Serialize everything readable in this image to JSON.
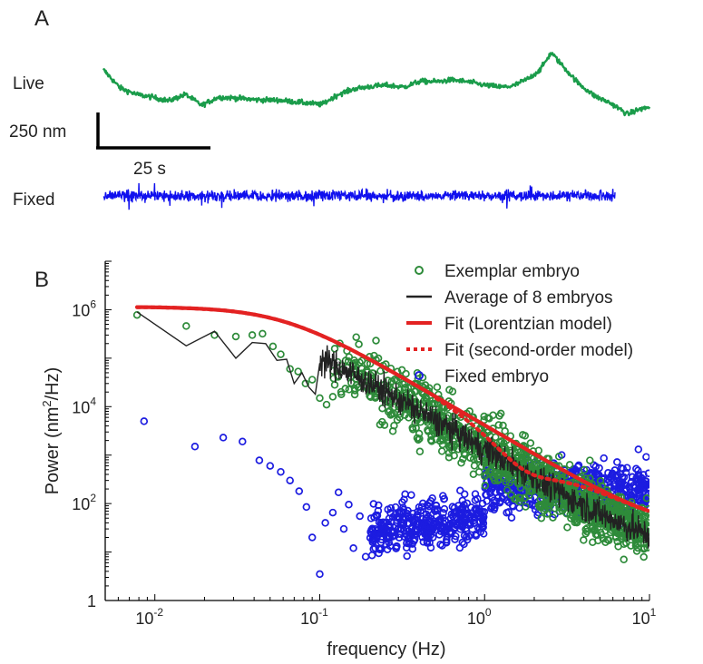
{
  "chart_data": [
    {
      "panel": "A",
      "type": "line",
      "scale_bar": {
        "y_label": "250 nm",
        "x_label": "25 s"
      },
      "series": [
        {
          "name": "Live",
          "color": "#1a9c4a",
          "profile": [
            [
              0.0,
              0.78
            ],
            [
              0.03,
              0.28
            ],
            [
              0.06,
              0.1
            ],
            [
              0.09,
              0.02
            ],
            [
              0.12,
              -0.08
            ],
            [
              0.15,
              0.1
            ],
            [
              0.18,
              -0.2
            ],
            [
              0.21,
              0.02
            ],
            [
              0.24,
              0.0
            ],
            [
              0.28,
              -0.05
            ],
            [
              0.32,
              -0.06
            ],
            [
              0.36,
              -0.12
            ],
            [
              0.4,
              -0.18
            ],
            [
              0.43,
              0.1
            ],
            [
              0.46,
              0.25
            ],
            [
              0.49,
              0.32
            ],
            [
              0.52,
              0.35
            ],
            [
              0.55,
              0.3
            ],
            [
              0.58,
              0.46
            ],
            [
              0.61,
              0.45
            ],
            [
              0.64,
              0.5
            ],
            [
              0.67,
              0.44
            ],
            [
              0.7,
              0.35
            ],
            [
              0.73,
              0.3
            ],
            [
              0.75,
              0.33
            ],
            [
              0.78,
              0.55
            ],
            [
              0.8,
              0.78
            ],
            [
              0.82,
              1.25
            ],
            [
              0.84,
              0.9
            ],
            [
              0.87,
              0.4
            ],
            [
              0.9,
              0.05
            ],
            [
              0.93,
              -0.15
            ],
            [
              0.96,
              -0.45
            ],
            [
              0.98,
              -0.32
            ],
            [
              1.0,
              -0.25
            ]
          ]
        },
        {
          "name": "Fixed",
          "color": "#1010ee"
        }
      ]
    },
    {
      "panel": "B",
      "type": "scatter",
      "xlabel": "frequency (Hz)",
      "ylabel": "Power (nm",
      "ylabel_sup": "2",
      "ylabel_end": "/Hz)",
      "x_scale": "log",
      "y_scale": "log",
      "xlim": [
        0.005,
        10
      ],
      "ylim": [
        1,
        10000000
      ],
      "x_ticks": [
        {
          "value": 0.01,
          "base": "10",
          "exp": "-2"
        },
        {
          "value": 0.1,
          "base": "10",
          "exp": "-1"
        },
        {
          "value": 1,
          "base": "10",
          "exp": "0"
        },
        {
          "value": 10,
          "base": "10",
          "exp": "1"
        }
      ],
      "y_ticks": [
        {
          "value": 1,
          "base": "1",
          "exp": ""
        },
        {
          "value": 100,
          "base": "10",
          "exp": "2"
        },
        {
          "value": 10000,
          "base": "10",
          "exp": "4"
        },
        {
          "value": 1000000,
          "base": "10",
          "exp": "6"
        }
      ],
      "legend_position": "top-right",
      "series": [
        {
          "name": "Exemplar embryo",
          "kind": "scatter",
          "color": "#2e8b3a"
        },
        {
          "name": "Average of 8 embryos",
          "kind": "line",
          "color": "#222222"
        },
        {
          "name": "Fit (Lorentzian model)",
          "kind": "line",
          "color": "#e32222",
          "model": {
            "A": 1150000,
            "fc": 0.06,
            "floor": 28
          }
        },
        {
          "name": "Fit (second-order model)",
          "kind": "dotted",
          "color": "#e32222",
          "model": {
            "A": 1150000,
            "fc": 0.06,
            "floor": 28
          }
        },
        {
          "name": "Fixed embryo",
          "kind": "scatter",
          "color": "#1c1ce0",
          "low_freq_points": [
            [
              0.0086,
              5000
            ],
            [
              0.0175,
              1500
            ],
            [
              0.026,
              2300
            ],
            [
              0.034,
              1900
            ],
            [
              0.043,
              780
            ],
            [
              0.05,
              600
            ],
            [
              0.058,
              450
            ],
            [
              0.066,
              300
            ],
            [
              0.075,
              180
            ],
            [
              0.083,
              85
            ],
            [
              0.09,
              20
            ],
            [
              0.1,
              3.5
            ],
            [
              0.108,
              40
            ],
            [
              0.12,
              65
            ],
            [
              0.13,
              170
            ],
            [
              0.14,
              30
            ],
            [
              0.15,
              95
            ],
            [
              0.16,
              12
            ],
            [
              0.175,
              55
            ],
            [
              0.19,
              8
            ]
          ]
        }
      ],
      "exemplar_low_freq_points": [
        [
          0.0078,
          780000
        ],
        [
          0.0155,
          460000
        ],
        [
          0.023,
          300000
        ],
        [
          0.031,
          280000
        ],
        [
          0.039,
          300000
        ],
        [
          0.045,
          320000
        ],
        [
          0.052,
          175000
        ],
        [
          0.058,
          120000
        ],
        [
          0.066,
          60000
        ],
        [
          0.074,
          53000
        ],
        [
          0.082,
          30000
        ],
        [
          0.09,
          36000
        ],
        [
          0.1,
          15000
        ],
        [
          0.11,
          11000
        ],
        [
          0.12,
          16000
        ]
      ],
      "average_low_freq_points": [
        [
          0.0078,
          900000
        ],
        [
          0.0155,
          180000
        ],
        [
          0.023,
          360000
        ],
        [
          0.031,
          100000
        ],
        [
          0.039,
          210000
        ],
        [
          0.047,
          200000
        ],
        [
          0.055,
          90000
        ],
        [
          0.063,
          95000
        ],
        [
          0.07,
          30000
        ],
        [
          0.078,
          50000
        ],
        [
          0.086,
          25000
        ],
        [
          0.094,
          18000
        ]
      ]
    }
  ],
  "panel_labels": {
    "a": "A",
    "b": "B"
  }
}
